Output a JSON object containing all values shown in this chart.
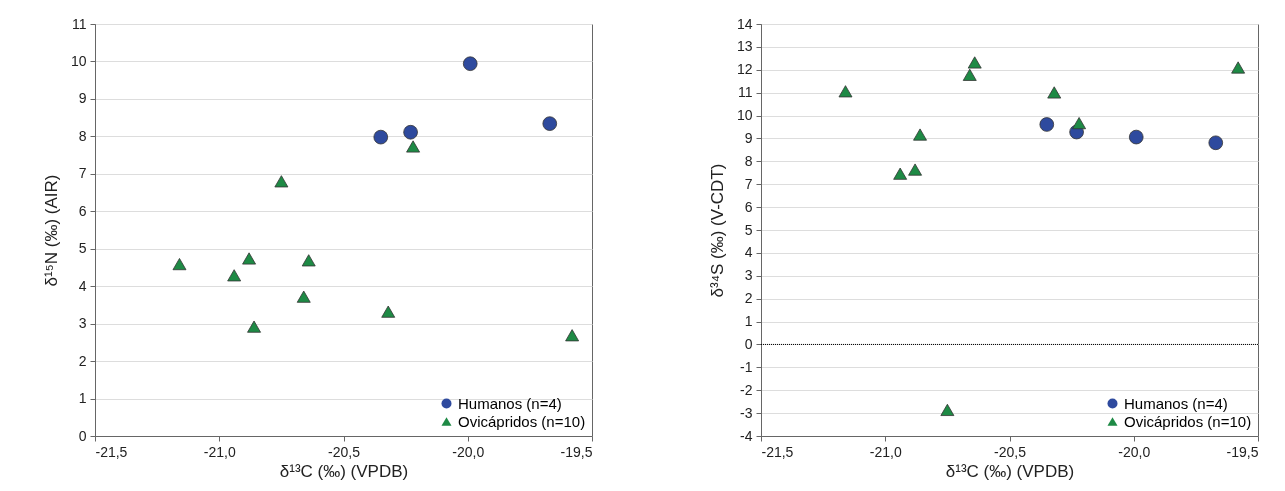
{
  "chart_data": [
    {
      "type": "scatter",
      "xlabel": "δ¹³C (‰) (VPDB)",
      "ylabel": "δ¹⁵N (‰) (AIR)",
      "xlim": [
        -21.5,
        -19.5
      ],
      "xticks": [
        {
          "value": -21.5,
          "label": "-21,5"
        },
        {
          "value": -21,
          "label": "-21,0"
        },
        {
          "value": -20.5,
          "label": "-20,5"
        },
        {
          "value": -20,
          "label": "-20,0"
        },
        {
          "value": -19.5,
          "label": "-19,5"
        }
      ],
      "ylim": [
        0,
        11
      ],
      "yticks": [
        0,
        1,
        2,
        3,
        4,
        5,
        6,
        7,
        8,
        9,
        10,
        11
      ],
      "grid": "y",
      "legend": "bottom right",
      "series": [
        {
          "name": "Humanos (n=4)",
          "color": "#2e4a9e",
          "marker": "circle",
          "x": [
            -20.35,
            -20.23,
            -19.99,
            -19.67
          ],
          "values": [
            7.98,
            8.11,
            9.94,
            8.34
          ]
        },
        {
          "name": "Ovicápridos (n=10)",
          "color": "#1e8a45",
          "marker": "triangle",
          "x": [
            -21.16,
            -20.94,
            -20.88,
            -20.86,
            -20.75,
            -20.66,
            -20.64,
            -20.32,
            -20.22,
            -19.58
          ],
          "values": [
            4.59,
            4.29,
            4.74,
            2.92,
            6.8,
            3.72,
            4.69,
            3.32,
            7.73,
            2.69
          ]
        }
      ]
    },
    {
      "type": "scatter",
      "xlabel": "δ¹³C (‰) (VPDB)",
      "ylabel": "δ³⁴S (‰) (V-CDT)",
      "xlim": [
        -21.5,
        -19.5
      ],
      "xticks": [
        {
          "value": -21.5,
          "label": "-21,5"
        },
        {
          "value": -21,
          "label": "-21,0"
        },
        {
          "value": -20.5,
          "label": "-20,5"
        },
        {
          "value": -20,
          "label": "-20,0"
        },
        {
          "value": -19.5,
          "label": "-19,5"
        }
      ],
      "ylim": [
        -4,
        14
      ],
      "yticks": [
        -4,
        -3,
        -2,
        -1,
        0,
        1,
        2,
        3,
        4,
        5,
        6,
        7,
        8,
        9,
        10,
        11,
        12,
        13,
        14
      ],
      "grid": "y",
      "legend": "bottom right",
      "ref_lines": [
        {
          "axis": "y",
          "value": 0,
          "line_style": "dotted",
          "color": "#000000"
        }
      ],
      "series": [
        {
          "name": "Humanos (n=4)",
          "color": "#2e4a9e",
          "marker": "circle",
          "x": [
            -20.35,
            -20.23,
            -19.99,
            -19.67
          ],
          "values": [
            9.61,
            9.28,
            9.06,
            8.81
          ]
        },
        {
          "name": "Ovicápridos (n=10)",
          "color": "#1e8a45",
          "marker": "triangle",
          "x": [
            -21.16,
            -20.94,
            -20.88,
            -20.86,
            -20.75,
            -20.66,
            -20.64,
            -20.32,
            -20.22,
            -19.58
          ],
          "values": [
            11.06,
            7.46,
            7.64,
            9.17,
            -2.86,
            11.78,
            12.32,
            11.01,
            9.67,
            12.1
          ]
        }
      ]
    }
  ]
}
